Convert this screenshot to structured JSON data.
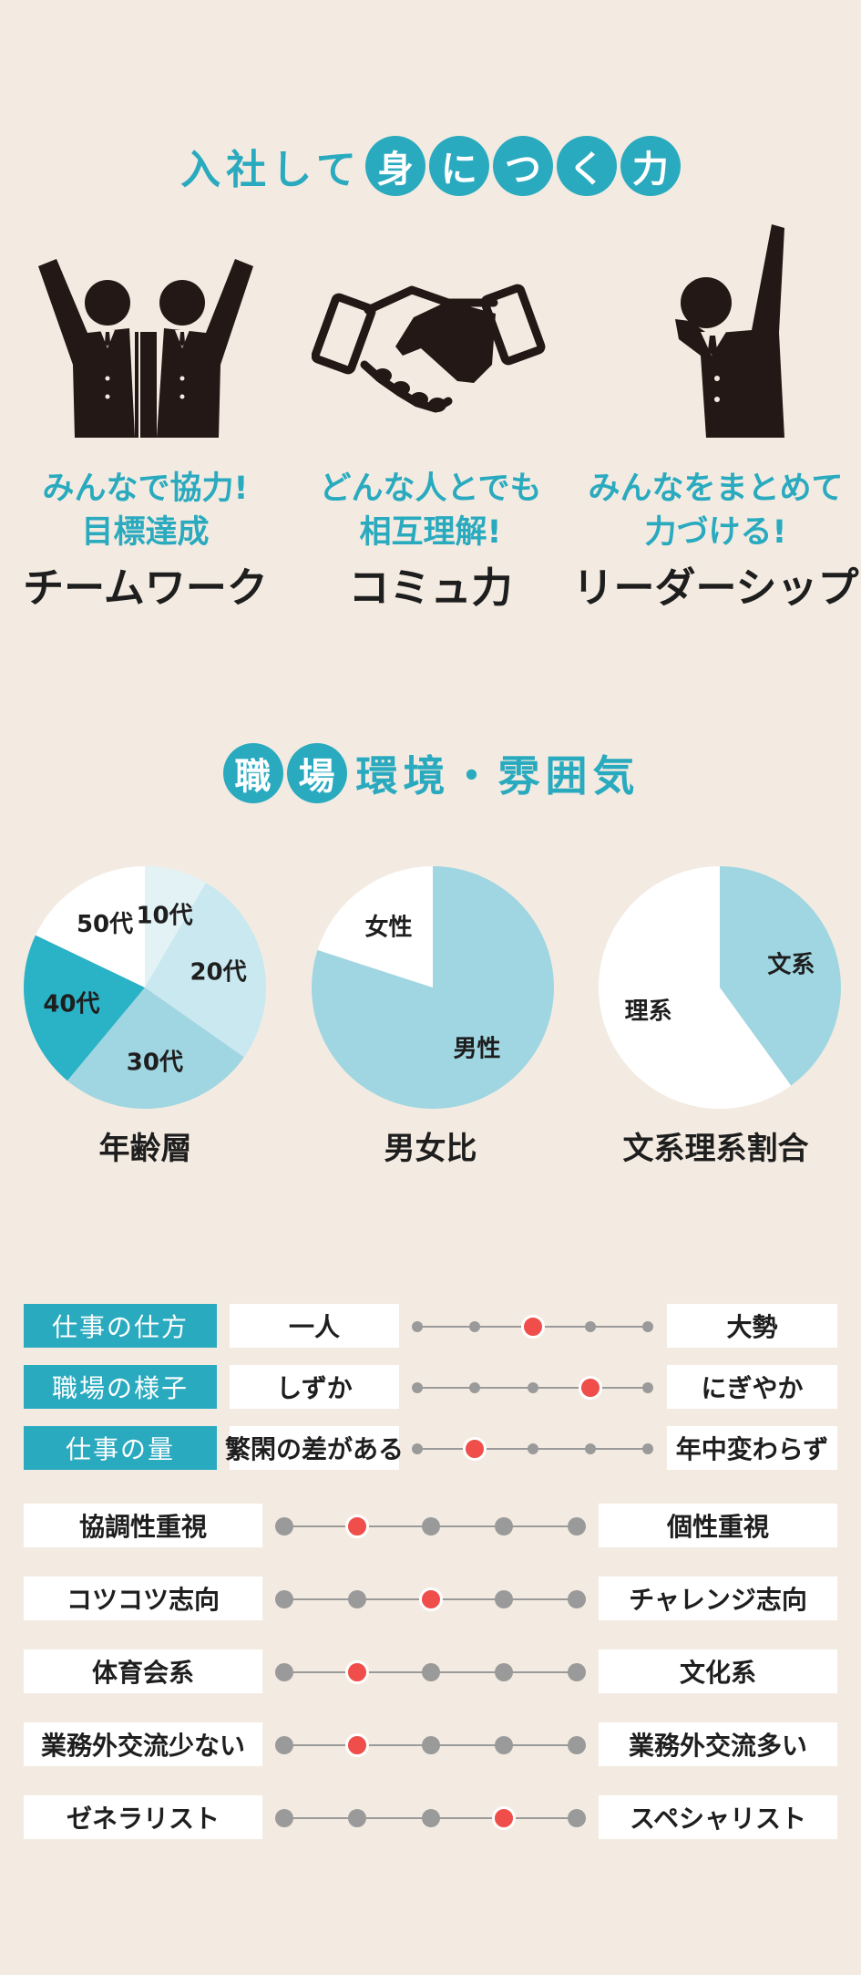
{
  "skills_section": {
    "title_plain": "入社して",
    "title_circled": [
      "身",
      "に",
      "つ",
      "く",
      "力"
    ],
    "skills": [
      {
        "icon": "two-persons-cheering-icon",
        "sub_line1": "みんなで協力!",
        "sub_line2": "目標達成",
        "title": "チームワーク"
      },
      {
        "icon": "handshake-icon",
        "sub_line1": "どんな人とでも",
        "sub_line2": "相互理解!",
        "title": "コミュ力"
      },
      {
        "icon": "person-raising-hand-icon",
        "sub_line1": "みんなをまとめて",
        "sub_line2": "力づける!",
        "title": "リーダーシップ"
      }
    ]
  },
  "workplace_section": {
    "title_circled": [
      "職",
      "場"
    ],
    "title_plain": "環境・雰囲気"
  },
  "chart_data": [
    {
      "type": "pie",
      "title": "年齢層",
      "slices": [
        {
          "label": "10代",
          "value": 8,
          "color": "#e2f2f5"
        },
        {
          "label": "20代",
          "value": 25,
          "color": "#c9e8ef"
        },
        {
          "label": "30代",
          "value": 25,
          "color": "#9fd6e2"
        },
        {
          "label": "40代",
          "value": 20,
          "color": "#2ab2c6"
        },
        {
          "label": "50代",
          "value": 17,
          "color": "#ffffff"
        }
      ]
    },
    {
      "type": "pie",
      "title": "男女比",
      "slices": [
        {
          "label": "男性",
          "value": 80,
          "color": "#9fd6e2"
        },
        {
          "label": "女性",
          "value": 20,
          "color": "#ffffff"
        }
      ]
    },
    {
      "type": "pie",
      "title": "文系理系割合",
      "slices": [
        {
          "label": "文系",
          "value": 40,
          "color": "#9fd6e2"
        },
        {
          "label": "理系",
          "value": 60,
          "color": "#ffffff"
        }
      ]
    }
  ],
  "sliders_top": [
    {
      "label": "仕事の仕方",
      "left": "一人",
      "right": "大勢",
      "position": 3
    },
    {
      "label": "職場の様子",
      "left": "しずか",
      "right": "にぎやか",
      "position": 4
    },
    {
      "label": "仕事の量",
      "left": "繁閑の差がある",
      "right": "年中変わらず",
      "position": 2
    }
  ],
  "sliders_bottom": [
    {
      "left": "協調性重視",
      "right": "個性重視",
      "position": 2
    },
    {
      "left": "コツコツ志向",
      "right": "チャレンジ志向",
      "position": 3
    },
    {
      "left": "体育会系",
      "right": "文化系",
      "position": 2
    },
    {
      "left": "業務外交流少ない",
      "right": "業務外交流多い",
      "position": 2
    },
    {
      "left": "ゼネラリスト",
      "right": "スペシャリスト",
      "position": 4
    }
  ],
  "colors": {
    "teal": "#2aaabf",
    "background": "#f3ebe1",
    "marker": "#ef4e4b",
    "track": "#9a9a9a"
  }
}
